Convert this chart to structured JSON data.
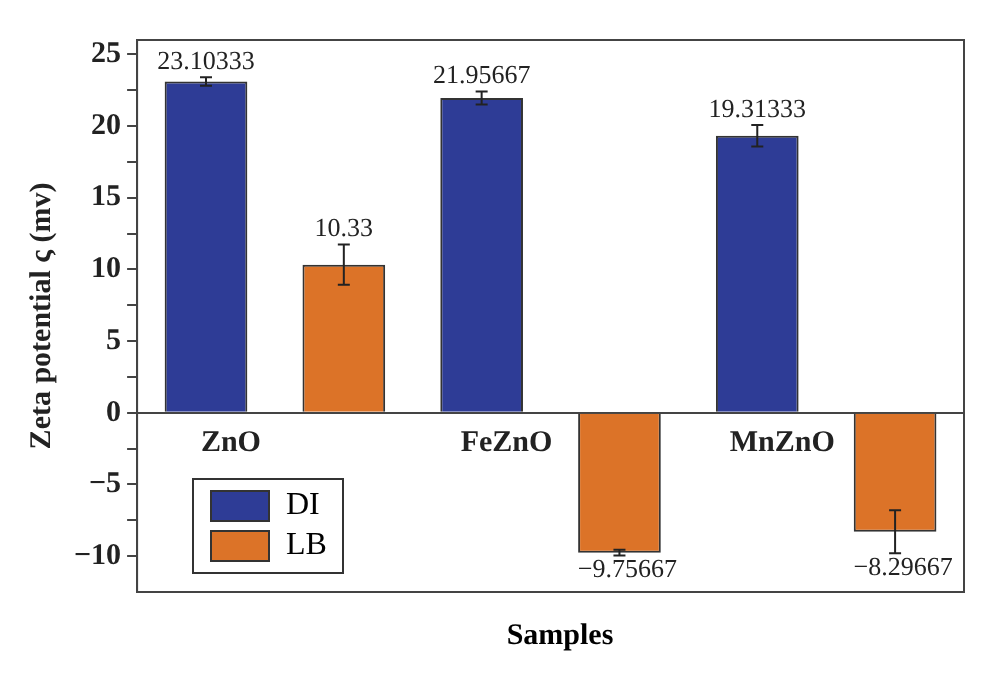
{
  "chart_data": {
    "type": "bar",
    "xlabel": "Samples",
    "ylabel": "Zeta potential ς (mv)",
    "categories": [
      "ZnO",
      "FeZnO",
      "MnZnO"
    ],
    "series": [
      {
        "name": "DI",
        "color": "#2e3c96",
        "values": [
          23.10333,
          21.95667,
          19.31333
        ],
        "errors": [
          0.3,
          0.45,
          0.75
        ]
      },
      {
        "name": "LB",
        "color": "#dc7328",
        "values": [
          10.33,
          -9.75667,
          -8.29667
        ],
        "errors": [
          1.4,
          0.2,
          1.5
        ]
      }
    ],
    "ylim": [
      -12.5,
      26
    ],
    "yticks": [
      -10,
      {
        "value": -7.5,
        "label": null
      },
      -5,
      {
        "value": -2.5,
        "label": null
      },
      0,
      {
        "value": 2.5,
        "label": null
      },
      5,
      {
        "value": 7.5,
        "label": null
      },
      10,
      {
        "value": 12.5,
        "label": null
      },
      15,
      {
        "value": 17.5,
        "label": null
      },
      20,
      {
        "value": 22.5,
        "label": null
      },
      25
    ],
    "data_labels": true,
    "grid": false,
    "legend": "bottom left"
  }
}
